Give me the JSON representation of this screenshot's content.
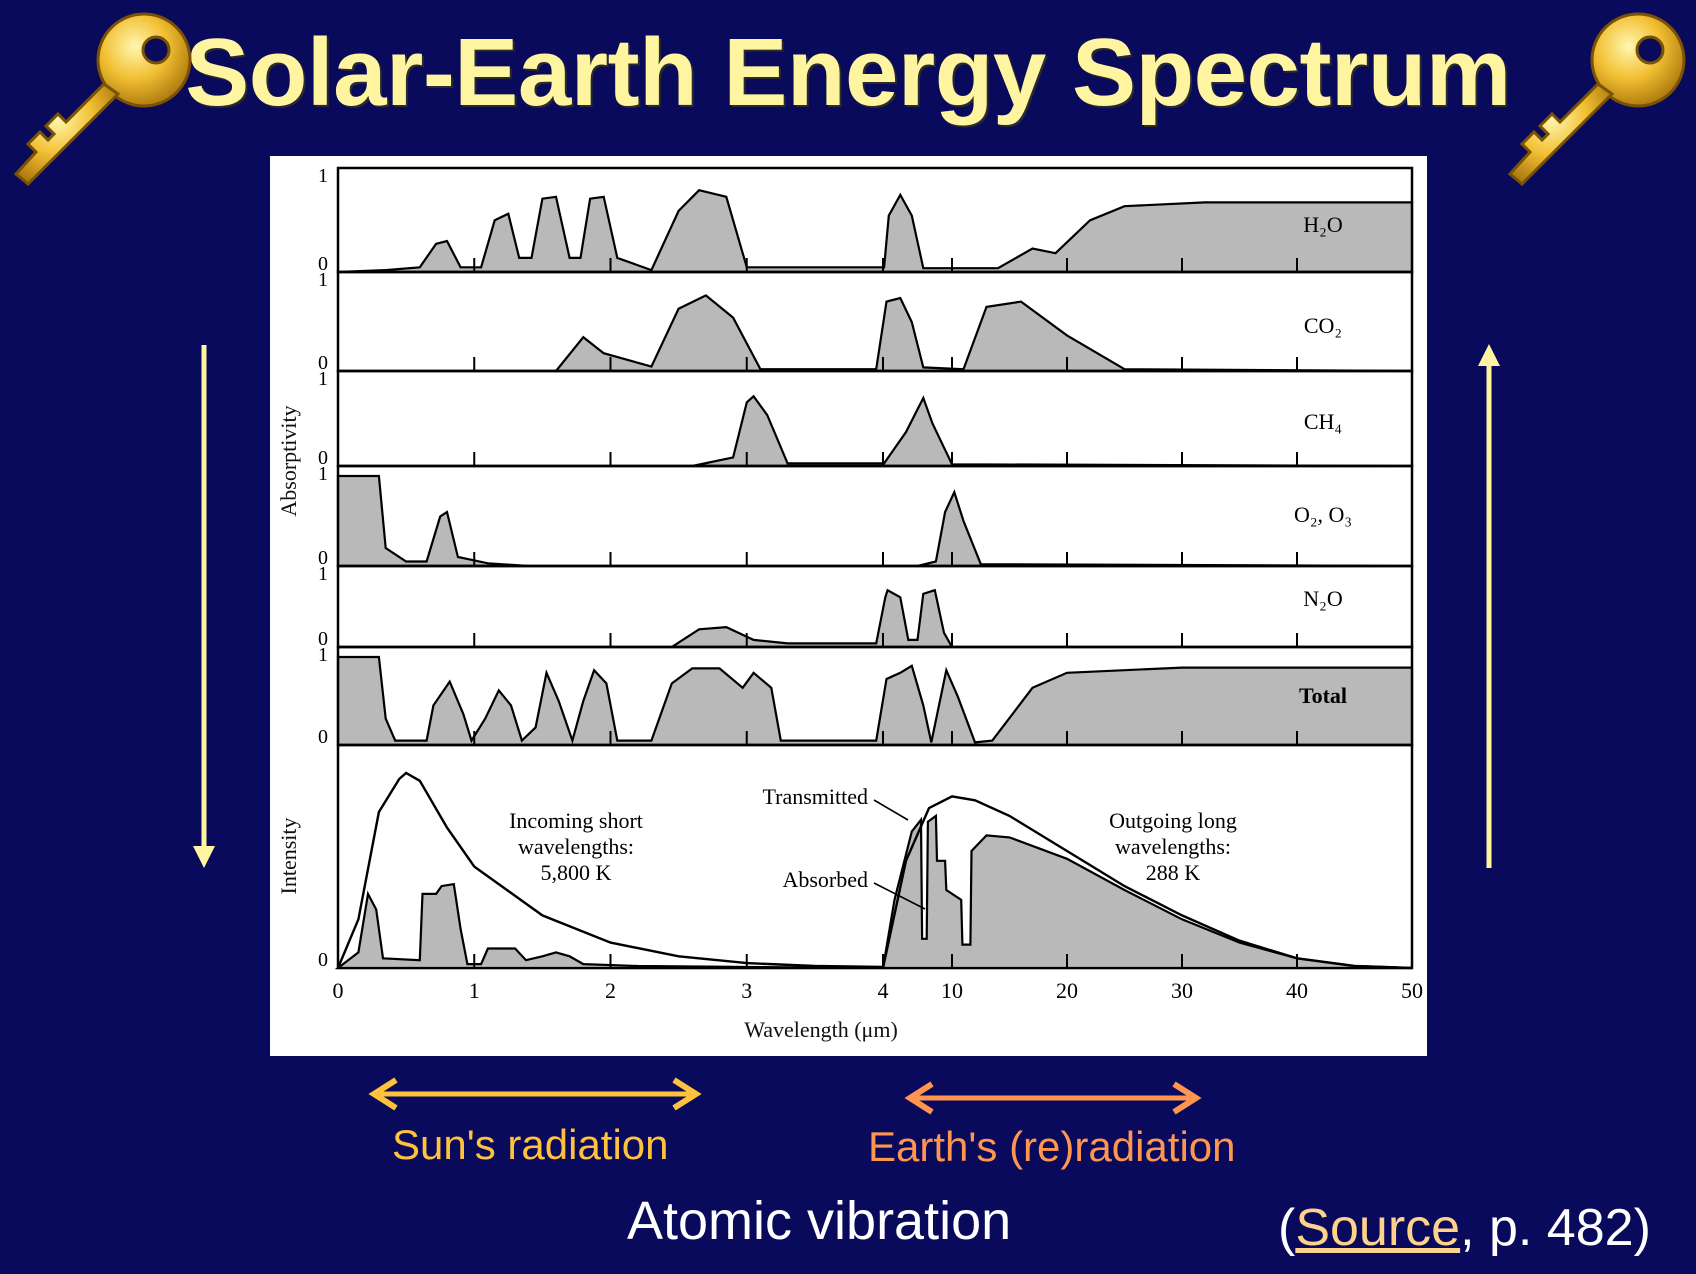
{
  "slide": {
    "title": "Solar-Earth Energy Spectrum",
    "bottom": {
      "sun_label": "Sun's radiation",
      "earth_label": "Earth's (re)radiation",
      "atomic_label": "Atomic vibration",
      "source_open": "(",
      "source_link": "Source",
      "source_rest": ", p. 482)"
    },
    "icons": {
      "left": "golden-key-icon",
      "right": "golden-key-icon"
    },
    "colors": {
      "background": "#0a0a5c",
      "title": "#fff5a0",
      "side_arrows": "#fff5a0",
      "sun_arrow": "#ffc23c",
      "earth_arrow": "#ff9650",
      "source_link": "#ffd28c"
    }
  },
  "chart_data": {
    "type": "area",
    "ylabels": {
      "absorptivity": "Absorptivity",
      "intensity": "Intensity"
    },
    "xlabel": "Wavelength (μm)",
    "x_ticks": [
      "0",
      "1",
      "2",
      "3",
      "4",
      "10",
      "20",
      "30",
      "40",
      "50"
    ],
    "x_scale": "piecewise: linear 0–4 μm, then linear 4–50 μm",
    "absorption_ylim": [
      0,
      1
    ],
    "absorption_tick_labels": [
      "0",
      "1"
    ],
    "intensity_tick_label": "0",
    "series": [
      {
        "name": "H₂O",
        "points": [
          [
            0,
            0
          ],
          [
            0.35,
            0.02
          ],
          [
            0.6,
            0.05
          ],
          [
            0.72,
            0.3
          ],
          [
            0.8,
            0.33
          ],
          [
            0.9,
            0.05
          ],
          [
            1.05,
            0.05
          ],
          [
            1.15,
            0.55
          ],
          [
            1.25,
            0.62
          ],
          [
            1.33,
            0.15
          ],
          [
            1.42,
            0.15
          ],
          [
            1.5,
            0.78
          ],
          [
            1.6,
            0.8
          ],
          [
            1.7,
            0.15
          ],
          [
            1.78,
            0.15
          ],
          [
            1.85,
            0.78
          ],
          [
            1.95,
            0.8
          ],
          [
            2.05,
            0.15
          ],
          [
            2.3,
            0.02
          ],
          [
            2.5,
            0.65
          ],
          [
            2.65,
            0.87
          ],
          [
            2.85,
            0.8
          ],
          [
            3.0,
            0.05
          ],
          [
            4.1,
            0.05
          ],
          [
            4.5,
            0.6
          ],
          [
            5.5,
            0.82
          ],
          [
            6.5,
            0.6
          ],
          [
            7.5,
            0.04
          ],
          [
            14,
            0.04
          ],
          [
            17,
            0.25
          ],
          [
            19,
            0.2
          ],
          [
            22,
            0.55
          ],
          [
            25,
            0.7
          ],
          [
            32,
            0.74
          ],
          [
            50,
            0.74
          ]
        ]
      },
      {
        "name": "CO₂",
        "points": [
          [
            0,
            0
          ],
          [
            1.6,
            0
          ],
          [
            1.8,
            0.38
          ],
          [
            1.95,
            0.2
          ],
          [
            2.3,
            0.05
          ],
          [
            2.5,
            0.7
          ],
          [
            2.7,
            0.85
          ],
          [
            2.9,
            0.6
          ],
          [
            3.1,
            0.02
          ],
          [
            3.95,
            0.02
          ],
          [
            4.3,
            0.78
          ],
          [
            5.5,
            0.82
          ],
          [
            6.5,
            0.55
          ],
          [
            7.5,
            0.04
          ],
          [
            11,
            0.02
          ],
          [
            13,
            0.72
          ],
          [
            16,
            0.78
          ],
          [
            20,
            0.4
          ],
          [
            25,
            0.02
          ],
          [
            50,
            0
          ]
        ]
      },
      {
        "name": "CH₄",
        "points": [
          [
            0,
            0
          ],
          [
            2.6,
            0
          ],
          [
            2.9,
            0.1
          ],
          [
            3.0,
            0.75
          ],
          [
            3.05,
            0.82
          ],
          [
            3.15,
            0.6
          ],
          [
            3.3,
            0.03
          ],
          [
            4.1,
            0.03
          ],
          [
            6,
            0.4
          ],
          [
            7.5,
            0.8
          ],
          [
            8.3,
            0.5
          ],
          [
            10,
            0.02
          ],
          [
            50,
            0
          ]
        ]
      },
      {
        "name": "O₂, O₃",
        "points": [
          [
            0,
            1
          ],
          [
            0.3,
            1
          ],
          [
            0.35,
            0.2
          ],
          [
            0.5,
            0.05
          ],
          [
            0.65,
            0.05
          ],
          [
            0.75,
            0.55
          ],
          [
            0.8,
            0.6
          ],
          [
            0.88,
            0.1
          ],
          [
            1.1,
            0.03
          ],
          [
            1.4,
            0
          ],
          [
            4,
            0
          ],
          [
            7,
            0
          ],
          [
            8.6,
            0.05
          ],
          [
            9.4,
            0.6
          ],
          [
            10.2,
            0.82
          ],
          [
            11,
            0.5
          ],
          [
            12.5,
            0.02
          ],
          [
            50,
            0
          ]
        ]
      },
      {
        "name": "N₂O",
        "points": [
          [
            0,
            0
          ],
          [
            2.45,
            0
          ],
          [
            2.65,
            0.25
          ],
          [
            2.85,
            0.28
          ],
          [
            3.05,
            0.1
          ],
          [
            3.3,
            0.05
          ],
          [
            3.95,
            0.05
          ],
          [
            4.2,
            0.7
          ],
          [
            4.4,
            0.8
          ],
          [
            5.5,
            0.7
          ],
          [
            6.2,
            0.1
          ],
          [
            7,
            0.1
          ],
          [
            7.5,
            0.75
          ],
          [
            8.5,
            0.8
          ],
          [
            9.3,
            0.2
          ],
          [
            10,
            0
          ],
          [
            50,
            0
          ]
        ]
      },
      {
        "name": "Total",
        "points": [
          [
            0,
            1
          ],
          [
            0.3,
            1
          ],
          [
            0.35,
            0.3
          ],
          [
            0.42,
            0.05
          ],
          [
            0.65,
            0.05
          ],
          [
            0.7,
            0.45
          ],
          [
            0.82,
            0.72
          ],
          [
            0.92,
            0.35
          ],
          [
            0.98,
            0.05
          ],
          [
            1.08,
            0.3
          ],
          [
            1.18,
            0.62
          ],
          [
            1.27,
            0.45
          ],
          [
            1.35,
            0.05
          ],
          [
            1.45,
            0.2
          ],
          [
            1.53,
            0.82
          ],
          [
            1.62,
            0.5
          ],
          [
            1.72,
            0.05
          ],
          [
            1.8,
            0.5
          ],
          [
            1.88,
            0.85
          ],
          [
            1.97,
            0.7
          ],
          [
            2.05,
            0.05
          ],
          [
            2.3,
            0.05
          ],
          [
            2.45,
            0.7
          ],
          [
            2.6,
            0.87
          ],
          [
            2.8,
            0.87
          ],
          [
            2.97,
            0.65
          ],
          [
            3.05,
            0.82
          ],
          [
            3.18,
            0.65
          ],
          [
            3.25,
            0.05
          ],
          [
            3.95,
            0.05
          ],
          [
            4.3,
            0.75
          ],
          [
            5.5,
            0.82
          ],
          [
            6.5,
            0.9
          ],
          [
            7.5,
            0.45
          ],
          [
            8.2,
            0.03
          ],
          [
            9.5,
            0.85
          ],
          [
            10.5,
            0.55
          ],
          [
            12,
            0.03
          ],
          [
            13.5,
            0.05
          ],
          [
            17,
            0.65
          ],
          [
            20,
            0.82
          ],
          [
            30,
            0.88
          ],
          [
            50,
            0.88
          ]
        ]
      },
      {
        "name": "Incoming short wavelengths: 5,800 K",
        "curve": "blackbody envelope",
        "points": [
          [
            0,
            0
          ],
          [
            0.15,
            0.25
          ],
          [
            0.3,
            0.8
          ],
          [
            0.45,
            0.97
          ],
          [
            0.5,
            1.0
          ],
          [
            0.6,
            0.96
          ],
          [
            0.8,
            0.72
          ],
          [
            1.0,
            0.52
          ],
          [
            1.5,
            0.27
          ],
          [
            2.0,
            0.13
          ],
          [
            2.5,
            0.06
          ],
          [
            3.0,
            0.025
          ],
          [
            3.5,
            0.01
          ],
          [
            4,
            0.005
          ]
        ]
      },
      {
        "name": "Incoming transmitted",
        "points": [
          [
            0,
            0
          ],
          [
            0.15,
            0.08
          ],
          [
            0.22,
            0.38
          ],
          [
            0.28,
            0.3
          ],
          [
            0.33,
            0.05
          ],
          [
            0.6,
            0.04
          ],
          [
            0.62,
            0.38
          ],
          [
            0.72,
            0.38
          ],
          [
            0.76,
            0.42
          ],
          [
            0.85,
            0.43
          ],
          [
            0.9,
            0.2
          ],
          [
            0.95,
            0.02
          ],
          [
            1.05,
            0.02
          ],
          [
            1.1,
            0.1
          ],
          [
            1.3,
            0.1
          ],
          [
            1.38,
            0.04
          ],
          [
            1.5,
            0.06
          ],
          [
            1.6,
            0.08
          ],
          [
            1.7,
            0.06
          ],
          [
            1.8,
            0.02
          ],
          [
            2.2,
            0.01
          ],
          [
            3.0,
            0.005
          ],
          [
            4,
            0
          ]
        ]
      },
      {
        "name": "Outgoing long wavelengths: 288 K",
        "curve": "blackbody envelope",
        "points": [
          [
            4,
            0
          ],
          [
            6,
            0.55
          ],
          [
            8,
            0.82
          ],
          [
            10,
            0.88
          ],
          [
            12,
            0.86
          ],
          [
            15,
            0.78
          ],
          [
            20,
            0.6
          ],
          [
            25,
            0.42
          ],
          [
            30,
            0.27
          ],
          [
            35,
            0.14
          ],
          [
            40,
            0.05
          ],
          [
            45,
            0.01
          ],
          [
            50,
            0
          ]
        ]
      },
      {
        "name": "Outgoing transmitted",
        "points": [
          [
            4,
            0
          ],
          [
            5,
            0.35
          ],
          [
            6.5,
            0.7
          ],
          [
            7.3,
            0.76
          ],
          [
            7.4,
            0.15
          ],
          [
            7.8,
            0.15
          ],
          [
            7.9,
            0.75
          ],
          [
            8.6,
            0.78
          ],
          [
            8.7,
            0.55
          ],
          [
            9.4,
            0.55
          ],
          [
            9.5,
            0.4
          ],
          [
            10.8,
            0.35
          ],
          [
            10.9,
            0.12
          ],
          [
            11.6,
            0.12
          ],
          [
            11.7,
            0.6
          ],
          [
            13,
            0.68
          ],
          [
            15,
            0.67
          ],
          [
            20,
            0.56
          ],
          [
            25,
            0.4
          ],
          [
            30,
            0.25
          ],
          [
            35,
            0.13
          ],
          [
            40,
            0.05
          ],
          [
            45,
            0.01
          ],
          [
            50,
            0
          ]
        ]
      }
    ],
    "annotations": [
      {
        "text": [
          "Incoming short",
          "wavelengths:",
          "5,800 K"
        ]
      },
      {
        "text": [
          "Transmitted"
        ]
      },
      {
        "text": [
          "Absorbed"
        ]
      },
      {
        "text": [
          "Outgoing long",
          "wavelengths:",
          "288 K"
        ]
      }
    ]
  }
}
